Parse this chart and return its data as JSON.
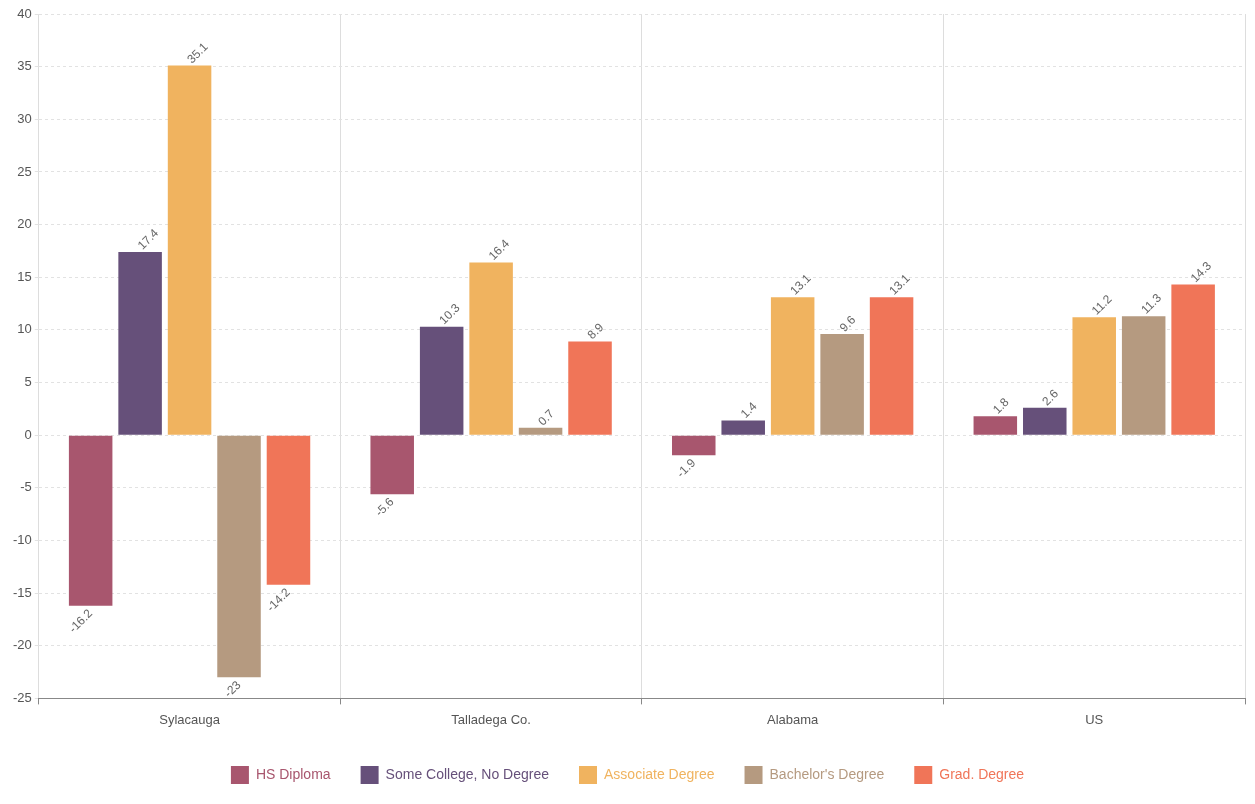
{
  "chart_data": {
    "type": "bar",
    "categories": [
      "Sylacauga",
      "Talladega Co.",
      "Alabama",
      "US"
    ],
    "series": [
      {
        "name": "HS Diploma",
        "color": "#a8566e",
        "values": [
          -16.2,
          -5.6,
          -1.9,
          1.8
        ]
      },
      {
        "name": "Some College, No Degree",
        "color": "#66507a",
        "values": [
          17.4,
          10.3,
          1.4,
          2.6
        ]
      },
      {
        "name": "Associate Degree",
        "color": "#f0b35f",
        "values": [
          35.1,
          16.4,
          13.1,
          11.2
        ]
      },
      {
        "name": "Bachelor's Degree",
        "color": "#b59a80",
        "values": [
          -23,
          0.7,
          9.6,
          11.3
        ]
      },
      {
        "name": "Grad. Degree",
        "color": "#f07558",
        "values": [
          -14.2,
          8.9,
          13.1,
          14.3
        ]
      }
    ],
    "ylim": [
      -25,
      40
    ],
    "yticks": [
      -25,
      -20,
      -15,
      -10,
      -5,
      0,
      5,
      10,
      15,
      20,
      25,
      30,
      35,
      40
    ],
    "grid": true,
    "legend": "bottom",
    "data_labels": true
  }
}
